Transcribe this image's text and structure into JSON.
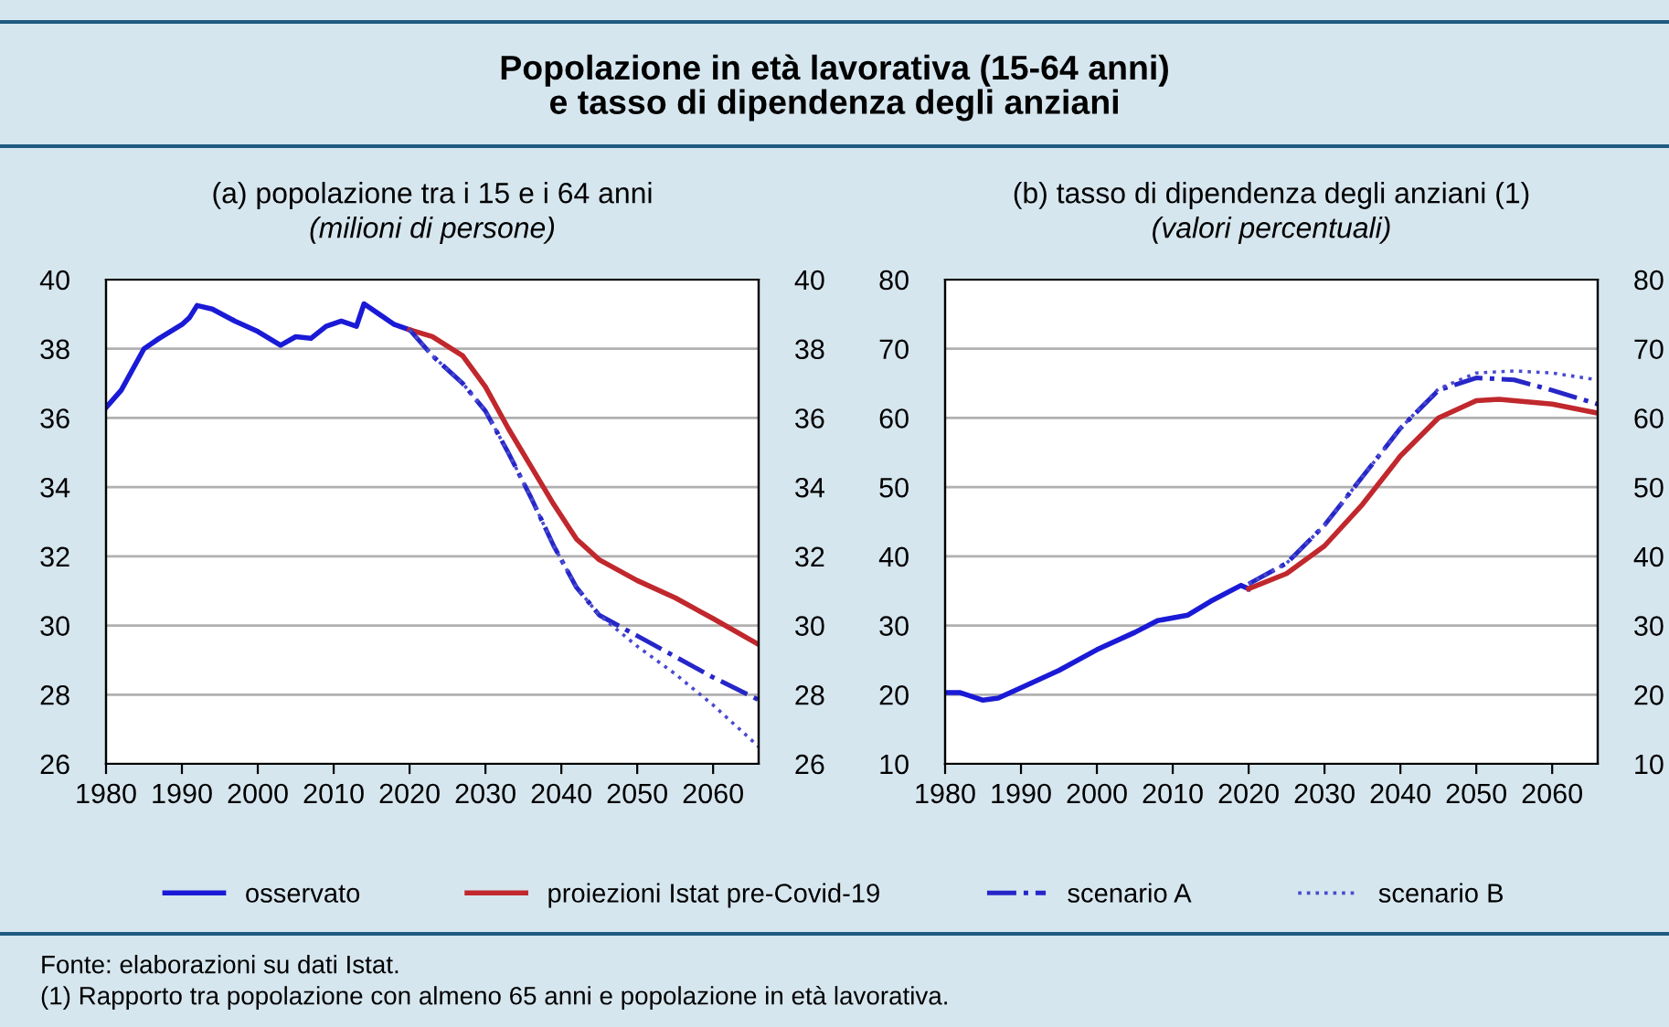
{
  "chart_data": [
    {
      "type": "line",
      "title": "(a) popolazione tra i 15 e i 64 anni",
      "subtitle": "(milioni di persone)",
      "annotations": [
        "Popolazione in età lavorativa (15-64 anni)\ne tasso di dipendenza degli anziani",
        "Fonte: elaborazioni su dati Istat.",
        "(1) Rapporto tra popolazione con almeno 65 anni e popolazione in età lavorativa."
      ],
      "xlim": [
        1980,
        2066
      ],
      "xticks": [
        1980,
        1990,
        2000,
        2010,
        2020,
        2030,
        2040,
        2050,
        2060
      ],
      "ylim": [
        26,
        40
      ],
      "yticks": [
        26,
        28,
        30,
        32,
        34,
        36,
        38,
        40
      ],
      "y2lim": [
        26,
        40
      ],
      "y2ticks": [
        26,
        28,
        30,
        32,
        34,
        36,
        38,
        40
      ],
      "grid": "y",
      "legend": "bottom",
      "series": [
        {
          "name": "osservato",
          "color": "#1a1ad6",
          "line_style": "solid",
          "x": [
            1980,
            1982,
            1985,
            1987,
            1990,
            1991,
            1992,
            1994,
            1997,
            2000,
            2003,
            2005,
            2007,
            2009,
            2011,
            2013,
            2014,
            2016,
            2018,
            2020
          ],
          "values": [
            36.3,
            36.8,
            38.0,
            38.3,
            38.7,
            38.9,
            39.25,
            39.15,
            38.8,
            38.5,
            38.1,
            38.35,
            38.3,
            38.65,
            38.8,
            38.65,
            39.3,
            39.0,
            38.7,
            38.55
          ]
        },
        {
          "name": "proiezioni Istat pre-Covid-19",
          "color": "#c0282d",
          "line_style": "solid",
          "x": [
            2020,
            2023,
            2027,
            2030,
            2033,
            2036,
            2039,
            2042,
            2045,
            2050,
            2055,
            2060,
            2066
          ],
          "values": [
            38.55,
            38.35,
            37.8,
            36.9,
            35.7,
            34.6,
            33.5,
            32.5,
            31.9,
            31.3,
            30.8,
            30.2,
            29.45
          ]
        },
        {
          "name": "scenario A",
          "color": "#2626c8",
          "line_style": "dashdot",
          "x": [
            2020,
            2023,
            2027,
            2030,
            2033,
            2036,
            2039,
            2042,
            2045,
            2050,
            2055,
            2060,
            2066
          ],
          "values": [
            38.55,
            37.8,
            37.0,
            36.2,
            35.0,
            33.7,
            32.3,
            31.1,
            30.3,
            29.7,
            29.1,
            28.5,
            27.85
          ]
        },
        {
          "name": "scenario B",
          "color": "#4a4ad0",
          "line_style": "dotted",
          "x": [
            2020,
            2023,
            2027,
            2030,
            2033,
            2036,
            2039,
            2042,
            2045,
            2050,
            2055,
            2060,
            2066
          ],
          "values": [
            38.55,
            37.8,
            37.0,
            36.2,
            35.0,
            33.7,
            32.3,
            31.1,
            30.3,
            29.4,
            28.6,
            27.7,
            26.5
          ]
        }
      ]
    },
    {
      "type": "line",
      "title": "(b) tasso di dipendenza degli anziani (1)",
      "subtitle": "(valori percentuali)",
      "xlim": [
        1980,
        2066
      ],
      "xticks": [
        1980,
        1990,
        2000,
        2010,
        2020,
        2030,
        2040,
        2050,
        2060
      ],
      "ylim": [
        10,
        80
      ],
      "yticks": [
        10,
        20,
        30,
        40,
        50,
        60,
        70,
        80
      ],
      "y2lim": [
        10,
        80
      ],
      "y2ticks": [
        10,
        20,
        30,
        40,
        50,
        60,
        70,
        80
      ],
      "grid": "y",
      "series": [
        {
          "name": "osservato",
          "color": "#1a1ad6",
          "line_style": "solid",
          "x": [
            1980,
            1982,
            1985,
            1987,
            1990,
            1995,
            2000,
            2005,
            2008,
            2012,
            2015,
            2019,
            2020
          ],
          "values": [
            20.3,
            20.3,
            19.2,
            19.5,
            21.0,
            23.5,
            26.5,
            29.0,
            30.7,
            31.5,
            33.5,
            35.8,
            35.3
          ]
        },
        {
          "name": "proiezioni Istat pre-Covid-19",
          "color": "#c0282d",
          "line_style": "solid",
          "x": [
            2020,
            2025,
            2030,
            2035,
            2040,
            2045,
            2050,
            2053,
            2060,
            2066
          ],
          "values": [
            35.3,
            37.5,
            41.5,
            47.5,
            54.5,
            60.0,
            62.5,
            62.7,
            62.0,
            60.7
          ]
        },
        {
          "name": "scenario A",
          "color": "#2626c8",
          "line_style": "dashdot",
          "x": [
            2020,
            2025,
            2030,
            2035,
            2040,
            2045,
            2050,
            2055,
            2060,
            2066
          ],
          "values": [
            36.0,
            39.0,
            44.5,
            51.5,
            58.5,
            64.0,
            65.8,
            65.5,
            64.0,
            62.0
          ]
        },
        {
          "name": "scenario B",
          "color": "#4a4ad0",
          "line_style": "dotted",
          "x": [
            2020,
            2025,
            2030,
            2035,
            2040,
            2045,
            2050,
            2055,
            2060,
            2066
          ],
          "values": [
            36.0,
            39.0,
            44.5,
            51.5,
            58.5,
            64.2,
            66.5,
            66.8,
            66.5,
            65.5
          ]
        }
      ]
    }
  ]
}
